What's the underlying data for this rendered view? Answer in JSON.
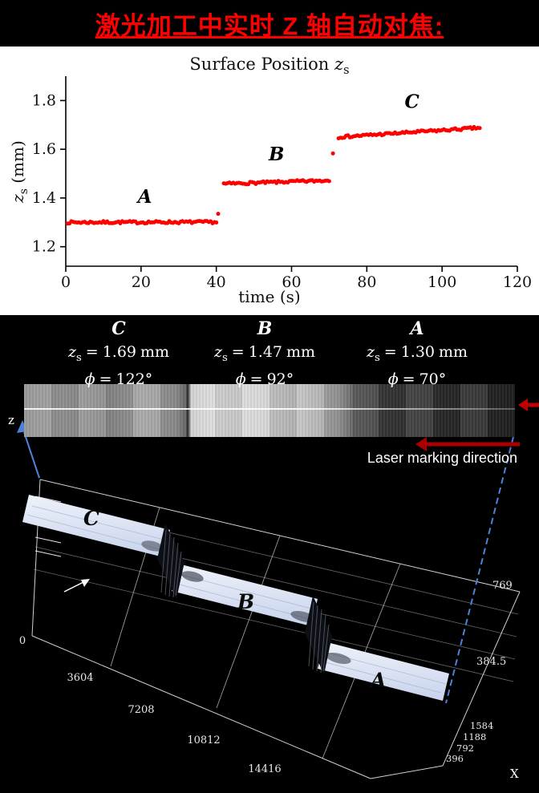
{
  "page_title": "激光加工中实时 Z 轴自动对焦:",
  "colors": {
    "title_red": "#ff0000",
    "marker_red": "#ff0000",
    "dashed_blue": "#4d82d8",
    "arrow_dark_red": "#a80000"
  },
  "chart_data": {
    "type": "scatter",
    "title_main": "Surface Position",
    "title_var": "z",
    "title_sub": "s",
    "xlabel": "time (s)",
    "ylabel_var": "z",
    "ylabel_sub": "s",
    "ylabel_unit": "(mm)",
    "xlim": [
      0,
      120
    ],
    "ylim": [
      1.12,
      1.9
    ],
    "xticks": [
      0,
      20,
      40,
      60,
      80,
      100,
      120
    ],
    "yticks": [
      1.2,
      1.4,
      1.6,
      1.8
    ],
    "dt": 0.5,
    "marker_color": "#ff0000",
    "grid": false,
    "segments": [
      {
        "label": "A",
        "t0": 0.5,
        "t1": 40,
        "z0": 1.3,
        "z1": 1.301,
        "noise": 0.005
      },
      {
        "label": "B",
        "t0": 42,
        "t1": 70,
        "z0": 1.458,
        "z1": 1.472,
        "noise": 0.005
      },
      {
        "label": "C",
        "t0": 72.5,
        "t1": 110,
        "z0": 1.65,
        "z1": 1.688,
        "noise": 0.005
      }
    ],
    "outliers": [
      {
        "t": 40.5,
        "z": 1.335
      },
      {
        "t": 71,
        "z": 1.583
      }
    ],
    "annotations": [
      {
        "text": "A",
        "t": 21,
        "z": 1.38
      },
      {
        "text": "B",
        "t": 56,
        "z": 1.555
      },
      {
        "text": "C",
        "t": 92,
        "z": 1.77
      }
    ]
  },
  "figure": {
    "symbols": {
      "z": "z",
      "sub": "s",
      "eq": "=",
      "phi": "ϕ",
      "unit": "mm"
    },
    "columns": [
      {
        "label": "C",
        "zs": "1.69",
        "phi": "122°"
      },
      {
        "label": "B",
        "zs": "1.47",
        "phi": "92°"
      },
      {
        "label": "A",
        "zs": "1.30",
        "phi": "70°"
      }
    ],
    "laser_text": "Laser marking direction",
    "step_labels": [
      "C",
      "B",
      "A"
    ],
    "axes": {
      "z_label": "z",
      "x_label": "X",
      "x_ticks": [
        "0",
        "3604",
        "7208",
        "10812",
        "14416"
      ],
      "right_ticks": [
        "769",
        "384.5"
      ],
      "depth_ticks": [
        "1584",
        "1188",
        "792",
        "396"
      ]
    }
  }
}
